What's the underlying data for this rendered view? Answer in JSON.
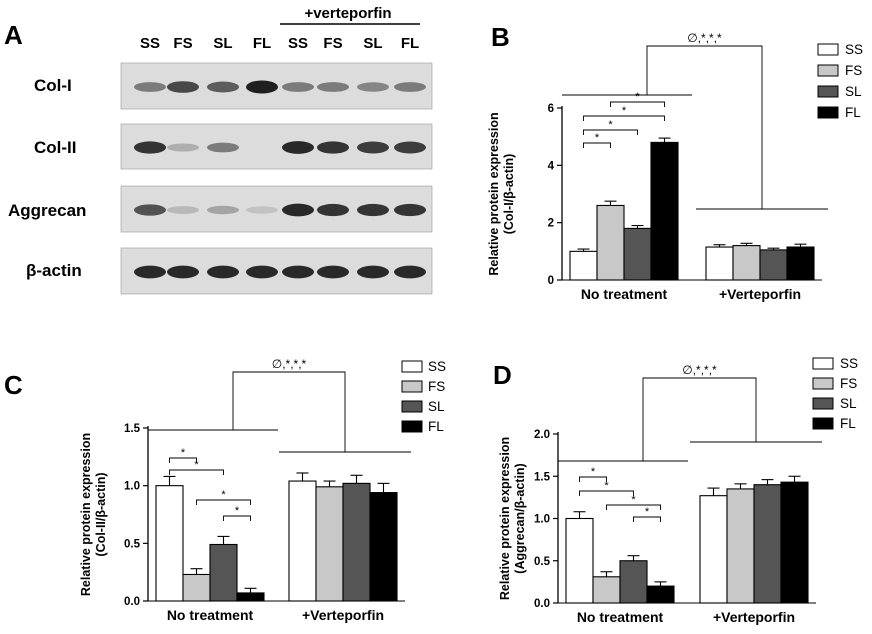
{
  "panel_labels": [
    "A",
    "B",
    "C",
    "D"
  ],
  "blot": {
    "treatment_label": "+verteporfin",
    "lanes": [
      "SS",
      "FS",
      "SL",
      "FL",
      "SS",
      "FS",
      "SL",
      "FL"
    ],
    "proteins": [
      "Col-I",
      "Col-II",
      "Aggrecan",
      "β-actin"
    ],
    "band_intensity": [
      [
        0.55,
        0.8,
        0.7,
        1.0,
        0.55,
        0.55,
        0.5,
        0.55
      ],
      [
        0.9,
        0.3,
        0.55,
        0.0,
        0.95,
        0.9,
        0.85,
        0.85
      ],
      [
        0.75,
        0.25,
        0.35,
        0.2,
        0.95,
        0.9,
        0.9,
        0.9
      ],
      [
        0.95,
        0.95,
        0.95,
        0.95,
        0.95,
        0.95,
        0.95,
        0.95
      ]
    ]
  },
  "colors": {
    "SS": "#ffffff",
    "FS": "#c8c8c8",
    "SL": "#555555",
    "FL": "#000000"
  },
  "chart_data": [
    {
      "type": "bar",
      "panel": "B",
      "ylabel": "Relative protein expression\n(Col-I/β-actin)",
      "ylim": [
        0,
        6
      ],
      "yticks": [
        "0",
        "2",
        "4",
        "6"
      ],
      "groups": [
        "No treatment",
        "+Verteporfin"
      ],
      "legend": [
        "SS",
        "FS",
        "SL",
        "FL"
      ],
      "legend_position": "top-right",
      "series": [
        {
          "name": "SS",
          "values": [
            1.0,
            1.15
          ],
          "errors": [
            0.08,
            0.08
          ]
        },
        {
          "name": "FS",
          "values": [
            2.6,
            1.2
          ],
          "errors": [
            0.15,
            0.08
          ]
        },
        {
          "name": "SL",
          "values": [
            1.8,
            1.05
          ],
          "errors": [
            0.1,
            0.06
          ]
        },
        {
          "name": "FL",
          "values": [
            4.8,
            1.15
          ],
          "errors": [
            0.15,
            0.1
          ]
        }
      ],
      "significance_symbol": "*",
      "group_significance": "∅,*,*,*"
    },
    {
      "type": "bar",
      "panel": "C",
      "ylabel": "Relative protein expression\n(Col-II/β-actin)",
      "ylim": [
        0,
        1.5
      ],
      "yticks": [
        "0.0",
        "0.5",
        "1.0",
        "1.5"
      ],
      "groups": [
        "No treatment",
        "+Verteporfin"
      ],
      "legend": [
        "SS",
        "FS",
        "SL",
        "FL"
      ],
      "legend_position": "top-right",
      "series": [
        {
          "name": "SS",
          "values": [
            1.0,
            1.04
          ],
          "errors": [
            0.08,
            0.07
          ]
        },
        {
          "name": "FS",
          "values": [
            0.23,
            0.99
          ],
          "errors": [
            0.05,
            0.05
          ]
        },
        {
          "name": "SL",
          "values": [
            0.49,
            1.02
          ],
          "errors": [
            0.07,
            0.07
          ]
        },
        {
          "name": "FL",
          "values": [
            0.07,
            0.94
          ],
          "errors": [
            0.04,
            0.08
          ]
        }
      ],
      "significance_symbol": "*",
      "group_significance": "∅,*,*,*"
    },
    {
      "type": "bar",
      "panel": "D",
      "ylabel": "Relative protein expression\n(Aggrecan/β-actin)",
      "ylim": [
        0,
        2
      ],
      "yticks": [
        "0.0",
        "0.5",
        "1.0",
        "1.5",
        "2.0"
      ],
      "groups": [
        "No treatment",
        "+Verteporfin"
      ],
      "legend": [
        "SS",
        "FS",
        "SL",
        "FL"
      ],
      "legend_position": "top-right",
      "series": [
        {
          "name": "SS",
          "values": [
            1.0,
            1.27
          ],
          "errors": [
            0.08,
            0.09
          ]
        },
        {
          "name": "FS",
          "values": [
            0.31,
            1.35
          ],
          "errors": [
            0.06,
            0.06
          ]
        },
        {
          "name": "SL",
          "values": [
            0.5,
            1.4
          ],
          "errors": [
            0.06,
            0.06
          ]
        },
        {
          "name": "FL",
          "values": [
            0.2,
            1.43
          ],
          "errors": [
            0.05,
            0.07
          ]
        }
      ],
      "significance_symbol": "*",
      "group_significance": "∅,*,*,*"
    }
  ]
}
